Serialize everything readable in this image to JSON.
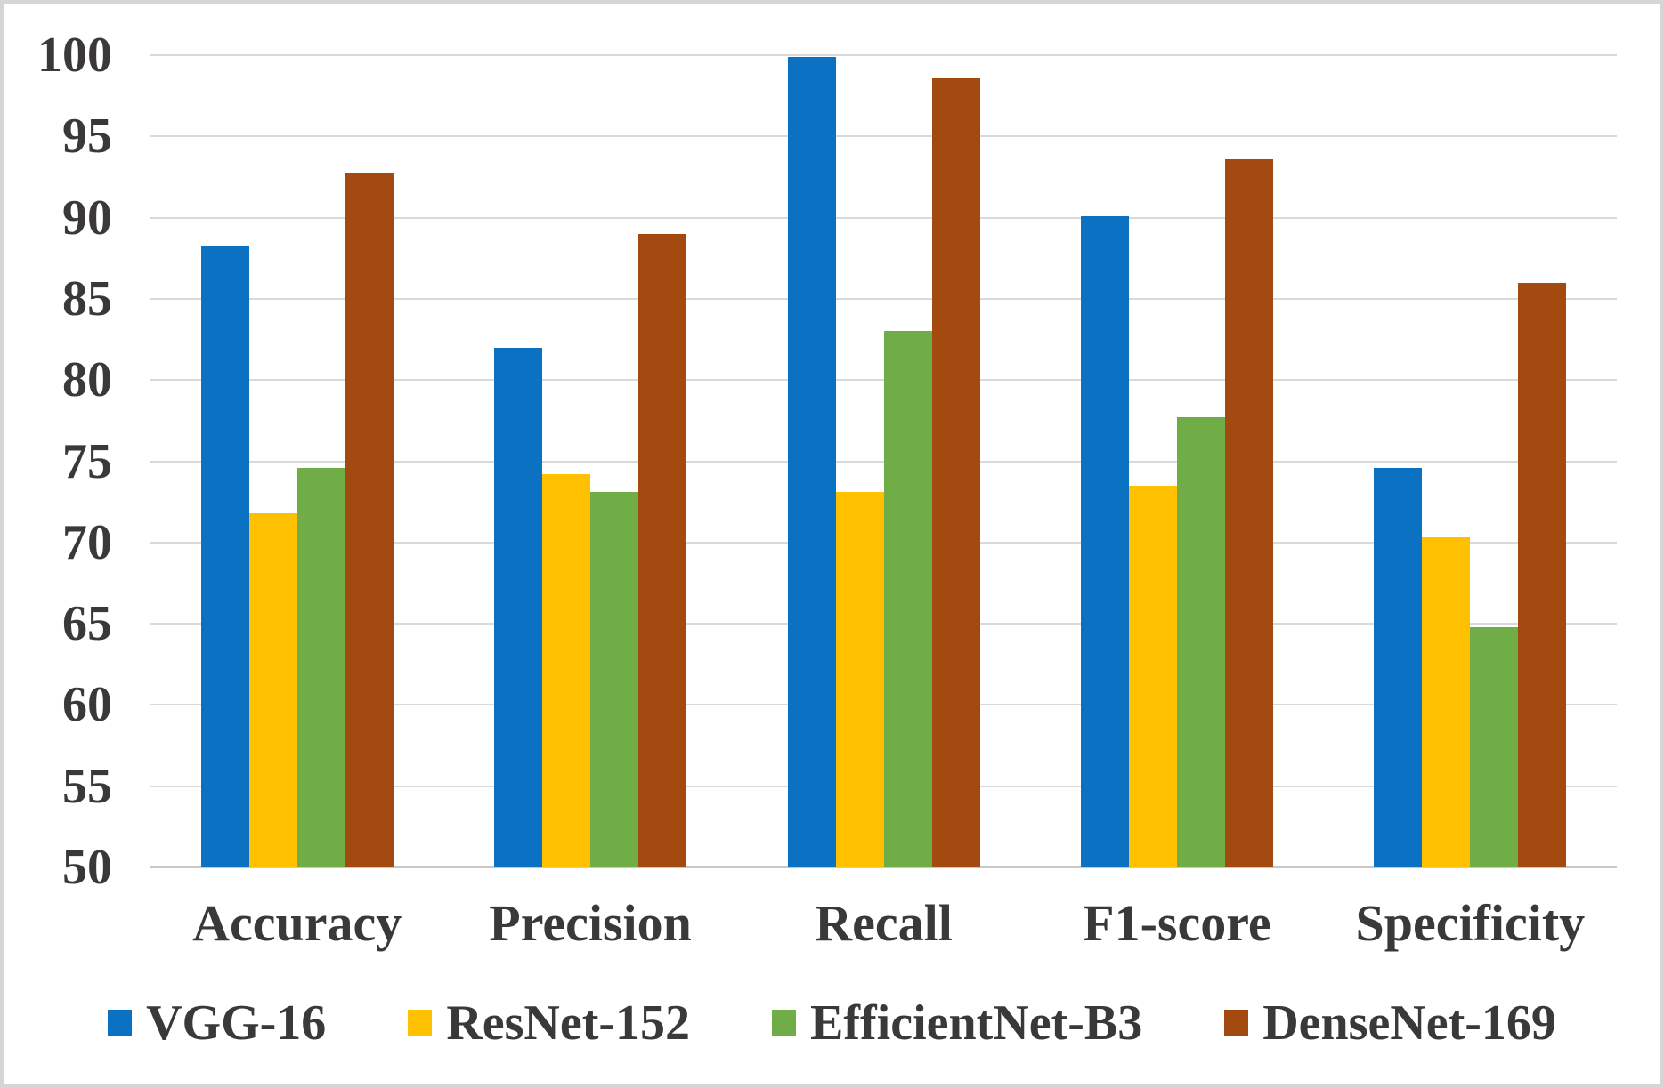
{
  "chart_data": {
    "type": "bar",
    "categories": [
      "Accuracy",
      "Precision",
      "Recall",
      "F1-score",
      "Specificity"
    ],
    "series": [
      {
        "name": "VGG-16",
        "color": "#0B71C2",
        "values": [
          88.2,
          82.0,
          99.9,
          90.1,
          74.6
        ]
      },
      {
        "name": "ResNet-152",
        "color": "#FFC000",
        "values": [
          71.8,
          74.2,
          73.1,
          73.5,
          70.3
        ]
      },
      {
        "name": "EfficientNet-B3",
        "color": "#70AD47",
        "values": [
          74.6,
          73.1,
          83.0,
          77.7,
          64.8
        ]
      },
      {
        "name": "DenseNet-169",
        "color": "#A34A10",
        "values": [
          92.7,
          89.0,
          98.6,
          93.6,
          86.0
        ]
      }
    ],
    "y_axis": {
      "min": 50,
      "max": 100,
      "step": 5
    },
    "grid": true,
    "legend_position": "bottom",
    "styles": {
      "gridline_color": "#D9D9D9",
      "baseline_color": "#C9C9C9",
      "text_color": "#3B3838",
      "background": "#FFFFFF",
      "border_color": "#D6D4D4"
    }
  }
}
